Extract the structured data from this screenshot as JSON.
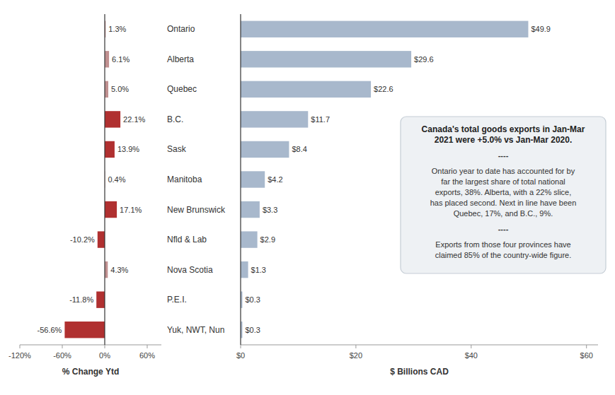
{
  "chart_data": [
    {
      "type": "bar",
      "orientation": "horizontal",
      "categories": [
        "Ontario",
        "Alberta",
        "Quebec",
        "B.C.",
        "Sask",
        "Manitoba",
        "New Brunswick",
        "Nfld & Lab",
        "Nova Scotia",
        "P.E.I.",
        "Yuk, NWT, Nun"
      ],
      "values": [
        1.3,
        6.1,
        5.0,
        22.1,
        13.9,
        0.4,
        17.1,
        -10.2,
        4.3,
        -11.8,
        -56.6
      ],
      "value_labels": [
        "1.3%",
        "6.1%",
        "5.0%",
        "22.1%",
        "13.9%",
        "0.4%",
        "17.1%",
        "-10.2%",
        "4.3%",
        "-11.8%",
        "-56.6%"
      ],
      "colors": [
        "#c09090",
        "#c09090",
        "#c09090",
        "#b03030",
        "#b03030",
        "#c09090",
        "#b03030",
        "#b03030",
        "#c09090",
        "#b03030",
        "#b03030"
      ],
      "xlabel": "% Change Ytd",
      "xlim": [
        -120,
        80
      ],
      "xticks": [
        {
          "value": -120,
          "label": "-120%"
        },
        {
          "value": -60,
          "label": "-60%"
        },
        {
          "value": 0,
          "label": "0%"
        },
        {
          "value": 60,
          "label": "60%"
        }
      ],
      "data_labels": true,
      "grid": false
    },
    {
      "type": "bar",
      "orientation": "horizontal",
      "values": [
        49.9,
        29.6,
        22.6,
        11.7,
        8.4,
        4.2,
        3.3,
        2.9,
        1.3,
        0.3,
        0.3
      ],
      "value_labels": [
        "$49.9",
        "$29.6",
        "$22.6",
        "$11.7",
        "$8.4",
        "$4.2",
        "$3.3",
        "$2.9",
        "$1.3",
        "$0.3",
        "$0.3"
      ],
      "color": "#a8b8cc",
      "xlabel": "$ Billions CAD",
      "xlim": [
        0,
        62
      ],
      "xticks": [
        {
          "value": 0,
          "label": "$0"
        },
        {
          "value": 20,
          "label": "$20"
        },
        {
          "value": 40,
          "label": "$40"
        },
        {
          "value": 60,
          "label": "$60"
        }
      ],
      "data_labels": true,
      "grid": false,
      "annotations": [
        "Canada's total goods exports in Jan-Mar\n2021 were +5.0% vs Jan-Mar 2020.",
        "----",
        "Ontario year to date has accounted for by\nfar the largest share of total national\nexports, 38%. Alberta, with a 22% slice,\nhas placed second. Next in line have been\nQuebec, 17%, and B.C., 9%.",
        "----",
        "Exports from those four provinces have\nclaimed 85% of the country-wide figure."
      ]
    }
  ]
}
